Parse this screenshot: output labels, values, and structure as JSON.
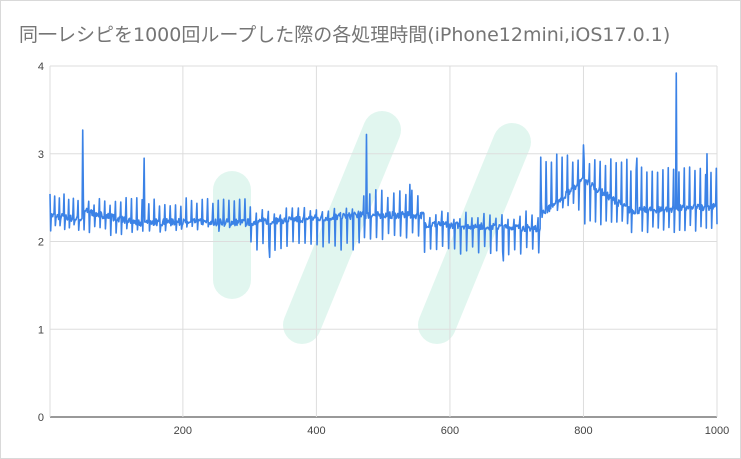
{
  "chart_data": {
    "type": "line",
    "title": "同一レシピを1000回ループした際の各処理時間(iPhone12mini,iOS17.0.1)",
    "xlabel": "",
    "ylabel": "",
    "xlim": [
      1,
      1000
    ],
    "ylim": [
      0,
      4
    ],
    "x_ticks": [
      "200",
      "400",
      "600",
      "800",
      "1000"
    ],
    "x_tick_values": [
      200,
      400,
      600,
      800,
      1000
    ],
    "y_ticks": [
      "0",
      "1",
      "2",
      "3",
      "4"
    ],
    "y_tick_values": [
      0,
      1,
      2,
      3,
      4
    ],
    "grid": true,
    "legend": "none",
    "line_color": "#3b82e6",
    "series": [
      {
        "count": 1000,
        "segments": [
          {
            "x": [
              1,
              50
            ],
            "start": 2.3,
            "end": 2.25,
            "spike_every": 7,
            "spike_up": 2.5,
            "spike_down": 2.15
          },
          {
            "x": [
              51,
              140
            ],
            "start": 2.35,
            "end": 2.2,
            "spike_every": 8,
            "spike_up": 2.45,
            "spike_down": 2.12
          },
          {
            "x": [
              141,
              300
            ],
            "start": 2.22,
            "end": 2.22,
            "spike_every": 8,
            "spike_up": 2.45,
            "spike_down": 2.15
          },
          {
            "x": [
              301,
              470
            ],
            "start": 2.22,
            "end": 2.3,
            "spike_every": 9,
            "spike_up": 2.35,
            "spike_down": 1.95
          },
          {
            "x": [
              471,
              560
            ],
            "start": 2.3,
            "end": 2.3,
            "spike_every": 9,
            "spike_up": 2.55,
            "spike_down": 2.05
          },
          {
            "x": [
              561,
              735
            ],
            "start": 2.2,
            "end": 2.15,
            "spike_every": 9,
            "spike_up": 2.3,
            "spike_down": 1.9
          },
          {
            "x": [
              736,
              800
            ],
            "start": 2.3,
            "end": 2.7,
            "spike_every": 8,
            "spike_up": 2.95,
            "spike_down": 2.4
          },
          {
            "x": [
              801,
              870
            ],
            "start": 2.7,
            "end": 2.35,
            "spike_every": 8,
            "spike_up": 2.9,
            "spike_down": 2.2
          },
          {
            "x": [
              871,
              1000
            ],
            "start": 2.35,
            "end": 2.4,
            "spike_every": 8,
            "spike_up": 2.8,
            "spike_down": 2.15
          }
        ],
        "peaks": [
          {
            "x": 50,
            "y": 3.27
          },
          {
            "x": 142,
            "y": 2.95
          },
          {
            "x": 475,
            "y": 3.22
          },
          {
            "x": 540,
            "y": 2.65
          },
          {
            "x": 800,
            "y": 3.1
          },
          {
            "x": 880,
            "y": 2.95
          },
          {
            "x": 939,
            "y": 3.92
          },
          {
            "x": 985,
            "y": 3.0
          }
        ],
        "troughs": [
          {
            "x": 330,
            "y": 1.82
          },
          {
            "x": 680,
            "y": 1.78
          }
        ]
      }
    ]
  }
}
